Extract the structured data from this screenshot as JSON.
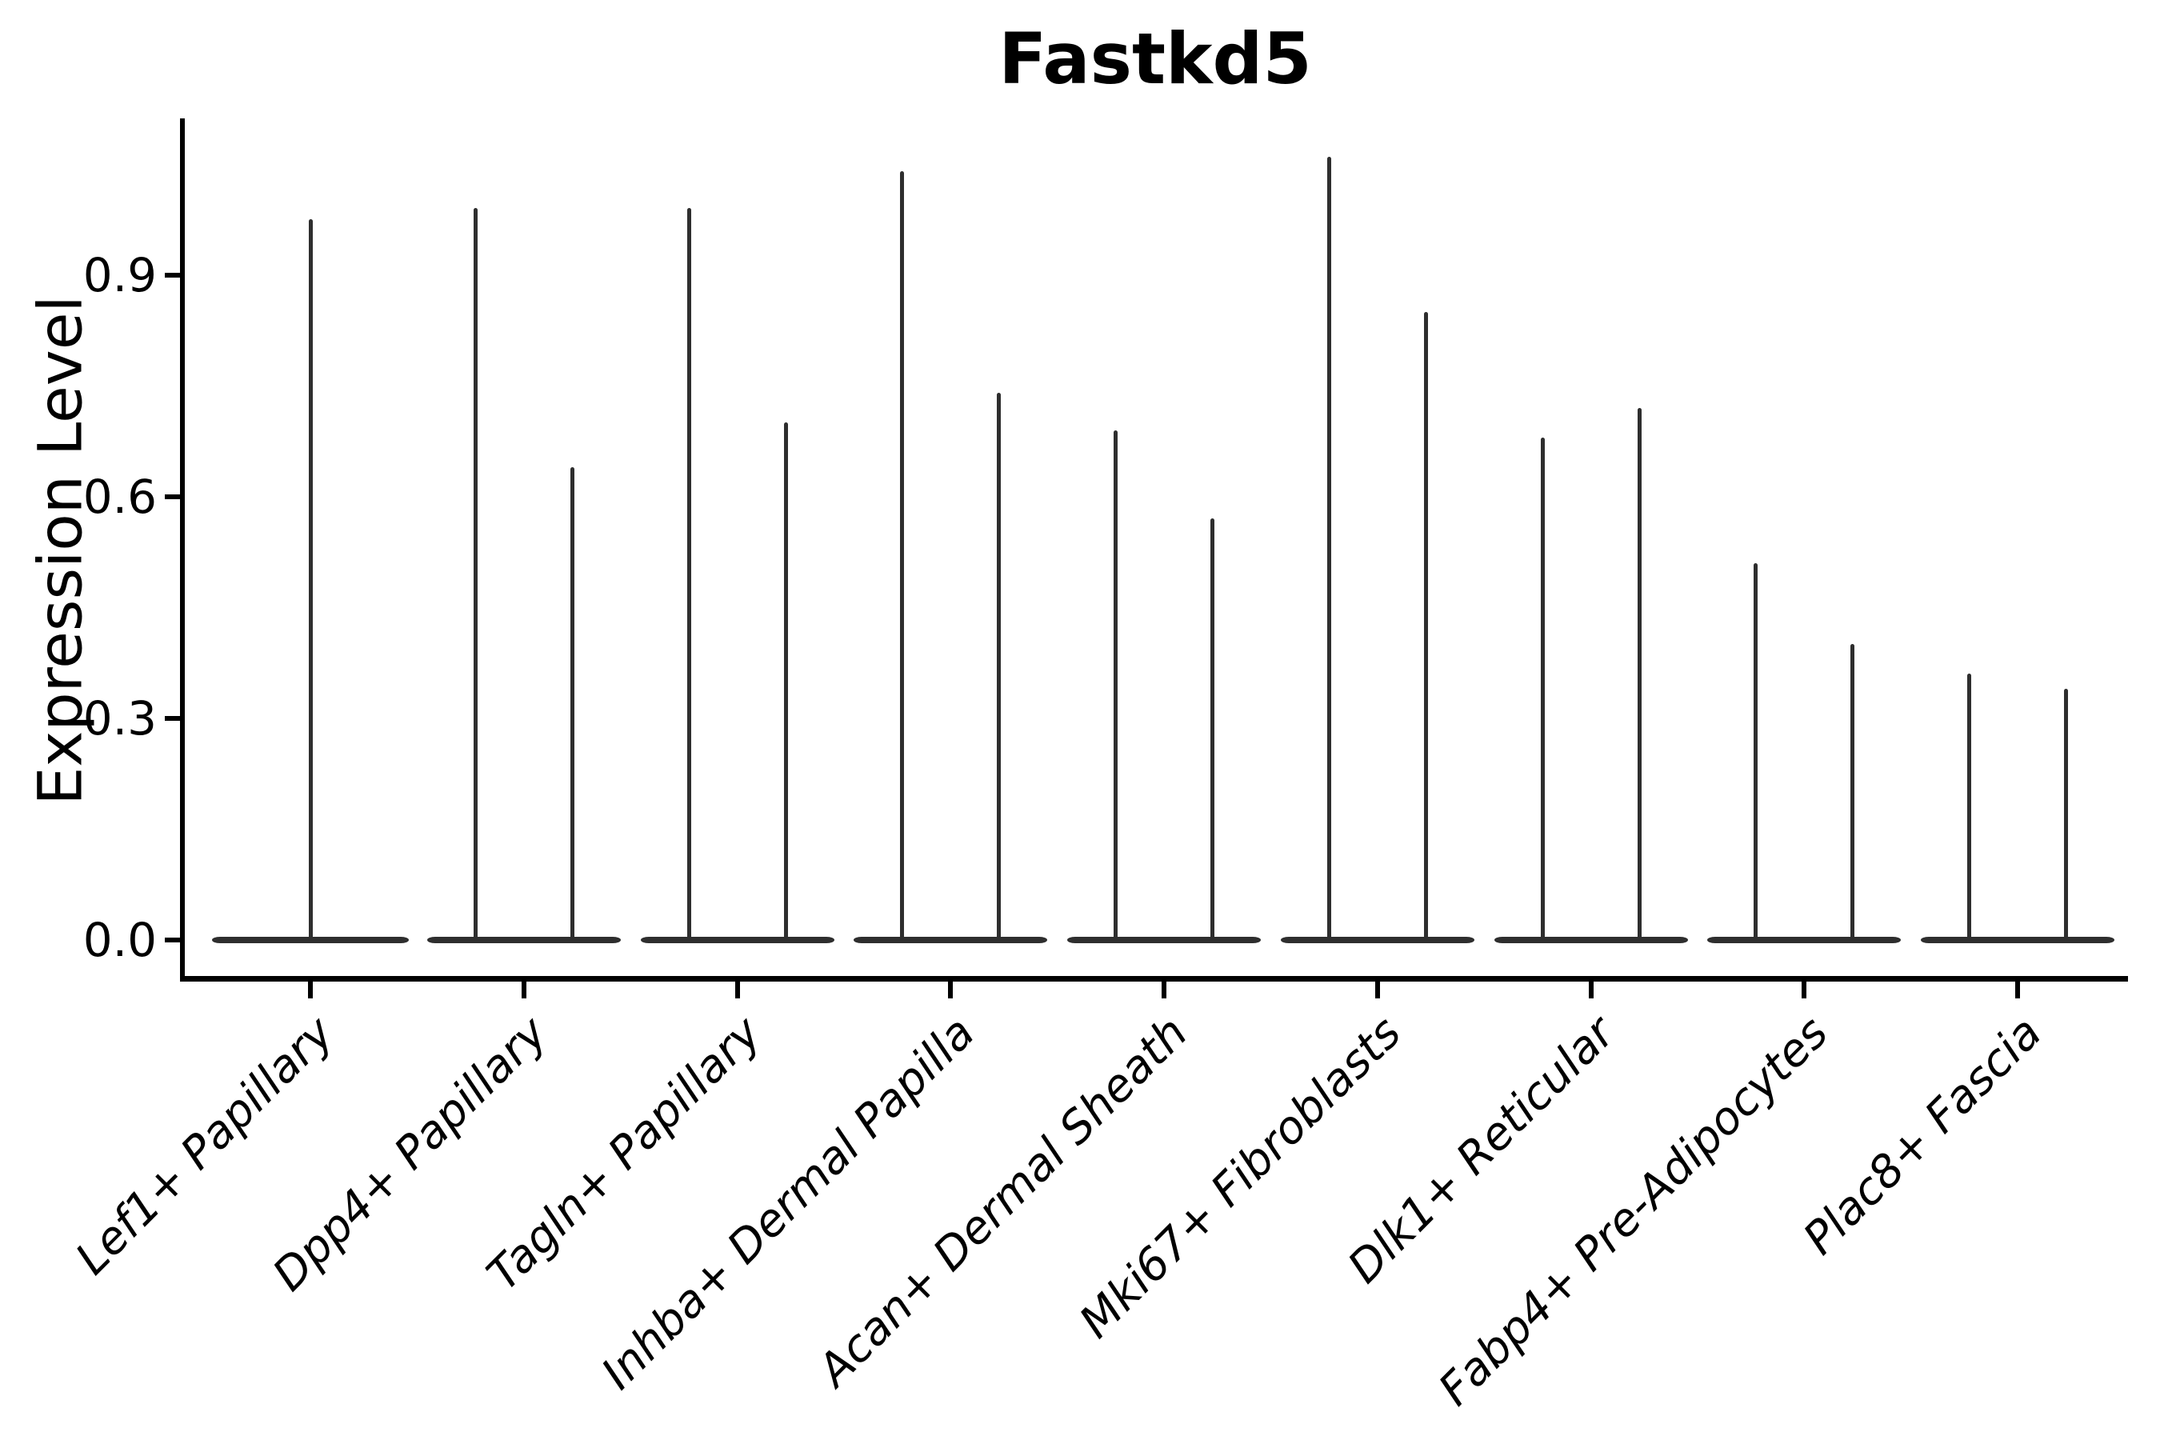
{
  "chart_data": {
    "type": "violin",
    "title": "Fastkd5",
    "ylabel": "Expression Level",
    "xlabel": "",
    "y_ticks": [
      "0.0",
      "0.3",
      "0.6",
      "0.9"
    ],
    "y_tick_values": [
      0.0,
      0.3,
      0.6,
      0.9
    ],
    "ylim": [
      -0.05,
      1.11
    ],
    "grid": false,
    "legend_position": "none",
    "violin_color": "#2e2e2e",
    "axis_color": "#000000",
    "categories": [
      {
        "label": "Lef1+ Papillary",
        "spikes": [
          0.975
        ]
      },
      {
        "label": "Dpp4+ Papillary",
        "spikes": [
          0.99,
          0.64
        ]
      },
      {
        "label": "Tagln+ Papillary",
        "spikes": [
          0.99,
          0.7
        ]
      },
      {
        "label": "Inhba+ Dermal Papilla",
        "spikes": [
          1.04,
          0.74
        ]
      },
      {
        "label": "Acan+ Dermal Sheath",
        "spikes": [
          0.69,
          0.57
        ]
      },
      {
        "label": "Mki67+ Fibroblasts",
        "spikes": [
          1.06,
          0.85
        ]
      },
      {
        "label": "Dlk1+ Reticular",
        "spikes": [
          0.68,
          0.72
        ]
      },
      {
        "label": "Fabp4+ Pre-Adipocytes",
        "spikes": [
          0.51,
          0.4
        ]
      },
      {
        "label": "Plac8+ Fascia",
        "spikes": [
          0.36,
          0.34
        ]
      }
    ]
  }
}
